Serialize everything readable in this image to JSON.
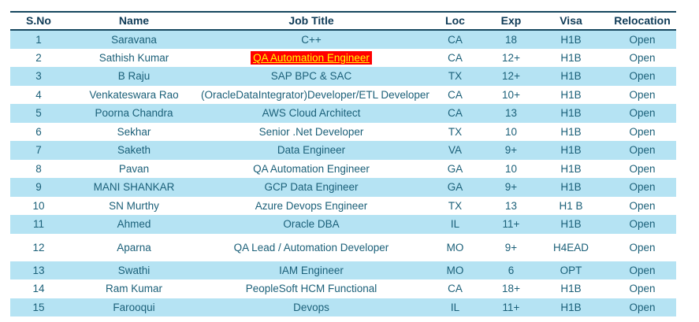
{
  "table": {
    "headers": [
      "S.No",
      "Name",
      "Job Title",
      "Loc",
      "Exp",
      "Visa",
      "Relocation"
    ],
    "rows": [
      {
        "s_no": "1",
        "name": "Saravana",
        "job_title": "C++",
        "loc": "CA",
        "exp": "18",
        "visa": "H1B",
        "relocation": "Open",
        "highlight_field": null,
        "tall": false
      },
      {
        "s_no": "2",
        "name": "Sathish Kumar",
        "job_title": "QA Automation Engineer",
        "loc": "CA",
        "exp": "12+",
        "visa": "H1B",
        "relocation": "Open",
        "highlight_field": "job_title",
        "tall": false
      },
      {
        "s_no": "3",
        "name": "B Raju",
        "job_title": "SAP BPC & SAC",
        "loc": "TX",
        "exp": "12+",
        "visa": "H1B",
        "relocation": "Open",
        "highlight_field": null,
        "tall": false
      },
      {
        "s_no": "4",
        "name": "Venkateswara Rao",
        "job_title": "(OracleDataIntegrator)Developer/ETL Developer",
        "loc": "CA",
        "exp": "10+",
        "visa": "H1B",
        "relocation": "Open",
        "highlight_field": null,
        "tall": false
      },
      {
        "s_no": "5",
        "name": "Poorna Chandra",
        "job_title": "AWS Cloud Architect",
        "loc": "CA",
        "exp": "13",
        "visa": "H1B",
        "relocation": "Open",
        "highlight_field": null,
        "tall": false
      },
      {
        "s_no": "6",
        "name": "Sekhar",
        "job_title": "Senior .Net Developer",
        "loc": "TX",
        "exp": "10",
        "visa": "H1B",
        "relocation": "Open",
        "highlight_field": null,
        "tall": false
      },
      {
        "s_no": "7",
        "name": "Saketh",
        "job_title": "Data Engineer",
        "loc": "VA",
        "exp": "9+",
        "visa": "H1B",
        "relocation": "Open",
        "highlight_field": null,
        "tall": false
      },
      {
        "s_no": "8",
        "name": "Pavan",
        "job_title": "QA Automation Engineer",
        "loc": "GA",
        "exp": "10",
        "visa": "H1B",
        "relocation": "Open",
        "highlight_field": null,
        "tall": false
      },
      {
        "s_no": "9",
        "name": "MANI SHANKAR",
        "job_title": "GCP Data Engineer",
        "loc": "GA",
        "exp": "9+",
        "visa": "H1B",
        "relocation": "Open",
        "highlight_field": null,
        "tall": false
      },
      {
        "s_no": "10",
        "name": "SN Murthy",
        "job_title": "Azure Devops Engineer",
        "loc": "TX",
        "exp": "13",
        "visa": "H1 B",
        "relocation": "Open",
        "highlight_field": null,
        "tall": false
      },
      {
        "s_no": "11",
        "name": "Ahmed",
        "job_title": "Oracle DBA",
        "loc": "IL",
        "exp": "11+",
        "visa": "H1B",
        "relocation": "Open",
        "highlight_field": null,
        "tall": false
      },
      {
        "s_no": "12",
        "name": "Aparna",
        "job_title": "QA Lead / Automation Developer",
        "loc": "MO",
        "exp": "9+",
        "visa": "H4EAD",
        "relocation": "Open",
        "highlight_field": null,
        "tall": true
      },
      {
        "s_no": "13",
        "name": "Swathi",
        "job_title": "IAM Engineer",
        "loc": "MO",
        "exp": "6",
        "visa": "OPT",
        "relocation": "Open",
        "highlight_field": null,
        "tall": false
      },
      {
        "s_no": "14",
        "name": "Ram Kumar",
        "job_title": "PeopleSoft HCM Functional",
        "loc": "CA",
        "exp": "18+",
        "visa": "H1B",
        "relocation": "Open",
        "highlight_field": null,
        "tall": false
      },
      {
        "s_no": "15",
        "name": "Farooqui",
        "job_title": "Devops",
        "loc": "IL",
        "exp": "11+",
        "visa": "H1B",
        "relocation": "Open",
        "highlight_field": null,
        "tall": false
      }
    ],
    "colors": {
      "alt_row_bg": "#B5E3F3",
      "body_text": "#1B6079",
      "header_text": "#0F3B57",
      "header_border": "#16475F",
      "highlight_bg": "#FF0000",
      "highlight_text": "#FFFF00"
    }
  }
}
